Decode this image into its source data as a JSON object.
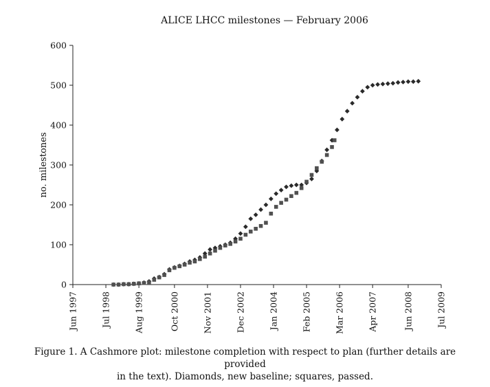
{
  "chart_data": {
    "type": "scatter",
    "title": "ALICE LHCC milestones — February 2006",
    "xlabel": "",
    "ylabel": "no. milestones",
    "x_ticks": [
      "Jun 1997",
      "Jul 1998",
      "Aug 1999",
      "Oct 2000",
      "Nov 2001",
      "Dec 2002",
      "Jan 2004",
      "Feb 2005",
      "Mar 2006",
      "Apr 2007",
      "Jun 2008",
      "Jul 2009"
    ],
    "xlim": [
      "Jun 1997",
      "Jul 2009"
    ],
    "ylim": [
      0,
      600
    ],
    "y_ticks": [
      0,
      100,
      200,
      300,
      400,
      500,
      600
    ],
    "grid": false,
    "legend": "none",
    "series": [
      {
        "name": "Diamonds, new baseline",
        "marker": "diamond",
        "color": "#2a2a2a",
        "x": [
          "1998-10",
          "1998-12",
          "1999-02",
          "1999-04",
          "1999-06",
          "1999-08",
          "1999-10",
          "1999-12",
          "2000-02",
          "2000-04",
          "2000-06",
          "2000-08",
          "2000-10",
          "2000-12",
          "2001-02",
          "2001-04",
          "2001-06",
          "2001-08",
          "2001-10",
          "2001-12",
          "2002-02",
          "2002-04",
          "2002-06",
          "2002-08",
          "2002-10",
          "2002-12",
          "2003-02",
          "2003-04",
          "2003-06",
          "2003-08",
          "2003-10",
          "2003-12",
          "2004-02",
          "2004-04",
          "2004-06",
          "2004-08",
          "2004-10",
          "2004-12",
          "2005-02",
          "2005-04",
          "2005-06",
          "2005-08",
          "2005-10",
          "2005-12",
          "2006-02",
          "2006-04",
          "2006-06",
          "2006-08",
          "2006-10",
          "2006-12",
          "2007-02",
          "2007-04",
          "2007-06",
          "2007-08",
          "2007-10",
          "2007-12",
          "2008-02",
          "2008-04",
          "2008-06",
          "2008-08",
          "2008-10"
        ],
        "y": [
          0,
          0,
          1,
          1,
          2,
          3,
          5,
          8,
          15,
          19,
          26,
          38,
          43,
          47,
          52,
          58,
          62,
          68,
          78,
          88,
          92,
          96,
          100,
          105,
          115,
          128,
          145,
          165,
          175,
          188,
          200,
          215,
          228,
          237,
          245,
          248,
          250,
          250,
          255,
          265,
          285,
          310,
          338,
          362,
          388,
          415,
          435,
          455,
          470,
          485,
          495,
          500,
          502,
          503,
          504,
          505,
          507,
          508,
          509,
          509,
          510
        ]
      },
      {
        "name": "squares, passed",
        "marker": "square",
        "color": "#505050",
        "x": [
          "1998-10",
          "1998-12",
          "1999-02",
          "1999-04",
          "1999-06",
          "1999-08",
          "1999-10",
          "1999-12",
          "2000-02",
          "2000-04",
          "2000-06",
          "2000-08",
          "2000-10",
          "2000-12",
          "2001-02",
          "2001-04",
          "2001-06",
          "2001-08",
          "2001-10",
          "2001-12",
          "2002-02",
          "2002-04",
          "2002-06",
          "2002-08",
          "2002-10",
          "2002-12",
          "2003-02",
          "2003-04",
          "2003-06",
          "2003-08",
          "2003-10",
          "2003-12",
          "2004-02",
          "2004-04",
          "2004-06",
          "2004-08",
          "2004-10",
          "2004-12",
          "2005-02",
          "2005-04",
          "2005-06",
          "2005-08",
          "2005-10",
          "2005-12",
          "2006-01"
        ],
        "y": [
          0,
          0,
          1,
          1,
          2,
          3,
          4,
          6,
          12,
          18,
          24,
          36,
          42,
          46,
          50,
          55,
          58,
          64,
          70,
          78,
          85,
          92,
          98,
          102,
          108,
          115,
          125,
          133,
          140,
          147,
          155,
          178,
          195,
          205,
          213,
          222,
          230,
          242,
          258,
          275,
          292,
          308,
          325,
          345,
          362
        ]
      }
    ]
  },
  "caption": {
    "line1": "Figure 1. A Cashmore plot: milestone completion with respect to plan (further details are provided",
    "line2": "in the text). Diamonds, new baseline; squares, passed."
  }
}
